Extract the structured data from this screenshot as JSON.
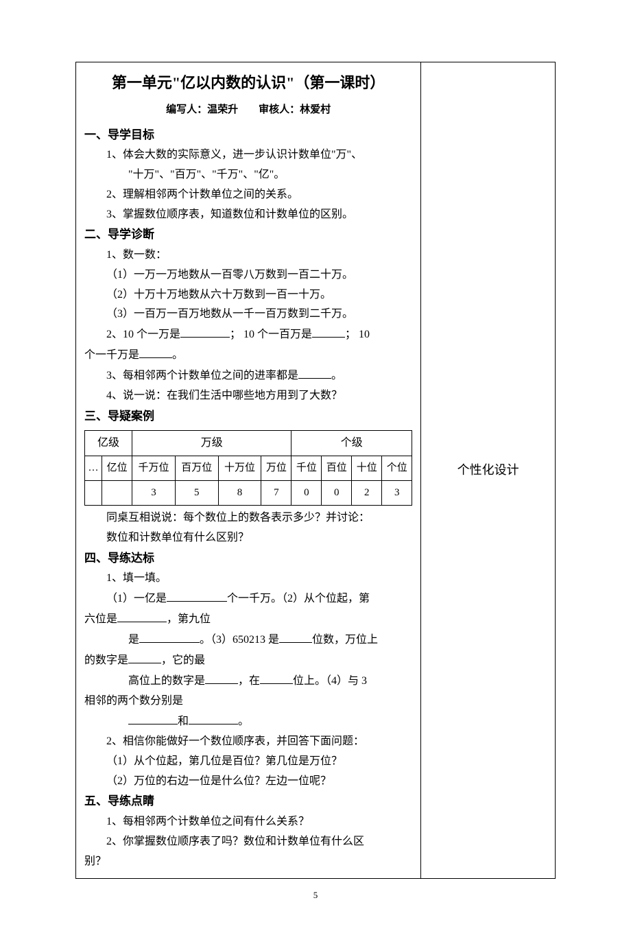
{
  "page": {
    "title": "第一单元\"亿以内数的认识\"（第一课时）",
    "byline": "编写人：温荣升　　审核人：林爱村",
    "side_label": "个性化设计",
    "page_number": "5"
  },
  "sections": {
    "s1": {
      "header": "一、导学目标",
      "items": {
        "i1a": "1、体会大数的实际意义，进一步认识计数单位\"万\"、",
        "i1b": "\"十万\"、\"百万\"、\"千万\"、\"亿\"。",
        "i2": "2、理解相邻两个计数单位之间的关系。",
        "i3": "3、掌握数位顺序表，知道数位和计数单位的区别。"
      }
    },
    "s2": {
      "header": "二、导学诊断",
      "items": {
        "i1": "1、数一数：",
        "i1_1": "（1）一万一万地数从一百零八万数到一百二十万。",
        "i1_2": "（2）十万十万地数从六十万数到一百一十万。",
        "i1_3": "（3）一百万一百万地数从一千一百万数到二千万。",
        "i2a": "2、10 个一万是",
        "i2b": "； 10 个一百万是",
        "i2c": "； 10",
        "i2d": "个一千万是",
        "i2e": "。",
        "i3a": "3、每相邻两个计数单位之间的进率都是",
        "i3b": "。",
        "i4": "4、说一说：在我们生活中哪些地方用到了大数？"
      }
    },
    "s3": {
      "header": "三、导疑案例",
      "table_headers": {
        "level_yi": "亿级",
        "level_wan": "万级",
        "level_ge": "个级"
      },
      "positions": {
        "p0": "…",
        "p1": "亿位",
        "p2": "千万位",
        "p3": "百万位",
        "p4": "十万位",
        "p5": "万位",
        "p6": "千位",
        "p7": "百位",
        "p8": "十位",
        "p9": "个位"
      },
      "numbers": {
        "n2": "3",
        "n3": "5",
        "n4": "8",
        "n5": "7",
        "n6": "0",
        "n7": "0",
        "n8": "2",
        "n9": "3"
      },
      "discuss1": "同桌互相说说：每个数位上的数各表示多少？并讨论：",
      "discuss2": "数位和计数单位有什么区别？"
    },
    "s4": {
      "header": "四、导练达标",
      "items": {
        "i1": "1、填一填。",
        "i1_1a": "（1）一亿是",
        "i1_1b": "个一千万。（2）从个位起，第",
        "i1_1c": "六位是",
        "i1_1d": "，第九位",
        "i1_2a": "是",
        "i1_2b": "。（3）650213 是",
        "i1_2c": "位数，万位上",
        "i1_2d": "的数字是",
        "i1_2e": "，它的最",
        "i1_3a": "高位上的数字是",
        "i1_3b": "，在",
        "i1_3c": "位上。（4）与 3",
        "i1_3d": "相邻的两个数分别是",
        "i1_4a": "和",
        "i1_4b": "。",
        "i2": "2、相信你能做好一个数位顺序表，并回答下面问题：",
        "i2_1": "（1）从个位起，第几位是百位？第几位是万位？",
        "i2_2": "（2）万位的右边一位是什么位？左边一位呢？"
      }
    },
    "s5": {
      "header": "五、导练点睛",
      "items": {
        "i1": "1、每相邻两个计数单位之间有什么关系？",
        "i2a": "2、你掌握数位顺序表了吗？数位和计数单位有什么区",
        "i2b": "别？"
      }
    }
  }
}
